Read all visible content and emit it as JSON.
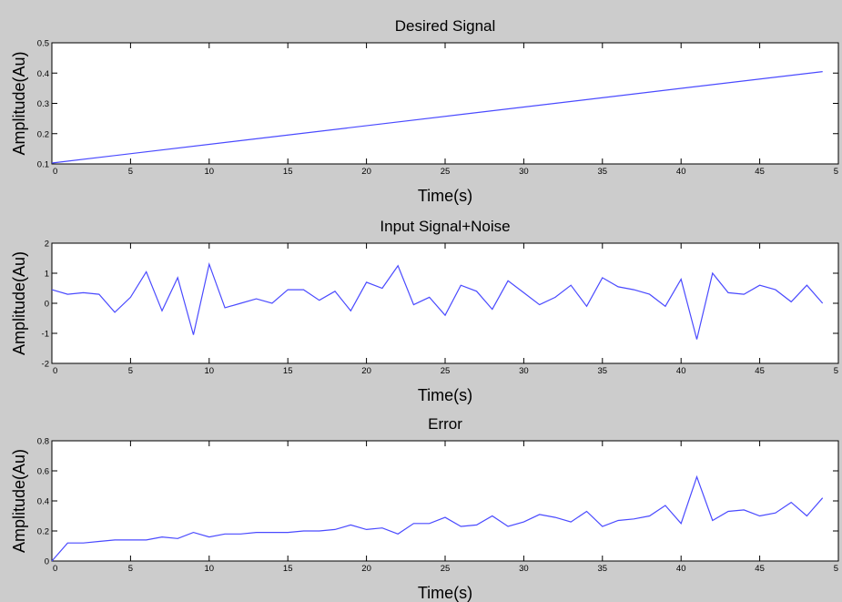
{
  "chart_data": [
    {
      "type": "line",
      "title": "Desired Signal",
      "xlabel": "Time(s)",
      "ylabel": "Amplitude(Au)",
      "xlim": [
        0,
        50
      ],
      "ylim": [
        0.1,
        0.5
      ],
      "xticks": [
        "0",
        "5",
        "10",
        "15",
        "20",
        "25",
        "30",
        "35",
        "40",
        "45",
        "5"
      ],
      "yticks": [
        "0.1",
        "0.2",
        "0.3",
        "0.4",
        "0.5"
      ],
      "grid": false,
      "line_color": "#4a4aff",
      "series": [
        {
          "x": [
            0,
            49
          ],
          "y": [
            0.103,
            0.405
          ]
        }
      ]
    },
    {
      "type": "line",
      "title": "Input Signal+Noise",
      "xlabel": "Time(s)",
      "ylabel": "Amplitude(Au)",
      "xlim": [
        0,
        50
      ],
      "ylim": [
        -2,
        2
      ],
      "xticks": [
        "0",
        "5",
        "10",
        "15",
        "20",
        "25",
        "30",
        "35",
        "40",
        "45",
        "5"
      ],
      "yticks": [
        "-2",
        "-1",
        "0",
        "1",
        "2"
      ],
      "grid": false,
      "line_color": "#4a4aff",
      "series": [
        {
          "x": [
            0,
            1,
            2,
            3,
            4,
            5,
            6,
            7,
            8,
            9,
            10,
            11,
            12,
            13,
            14,
            15,
            16,
            17,
            18,
            19,
            20,
            21,
            22,
            23,
            24,
            25,
            26,
            27,
            28,
            29,
            30,
            31,
            32,
            33,
            34,
            35,
            36,
            37,
            38,
            39,
            40,
            41,
            42,
            43,
            44,
            45,
            46,
            47,
            48,
            49
          ],
          "y": [
            0.45,
            0.3,
            0.35,
            0.3,
            -0.3,
            0.2,
            1.05,
            -0.25,
            0.85,
            -1.05,
            1.3,
            -0.15,
            0.0,
            0.15,
            0.0,
            0.45,
            0.45,
            0.1,
            0.4,
            -0.25,
            0.7,
            0.5,
            1.25,
            -0.05,
            0.2,
            -0.4,
            0.6,
            0.4,
            -0.2,
            0.75,
            0.35,
            -0.05,
            0.2,
            0.6,
            -0.1,
            0.85,
            0.55,
            0.45,
            0.3,
            -0.1,
            0.8,
            -1.2,
            1.0,
            0.35,
            0.3,
            0.6,
            0.45,
            0.05,
            0.6,
            0.0
          ]
        }
      ]
    },
    {
      "type": "line",
      "title": "Error",
      "xlabel": "Time(s)",
      "ylabel": "Amplitude(Au)",
      "xlim": [
        0,
        50
      ],
      "ylim": [
        0,
        0.8
      ],
      "xticks": [
        "0",
        "5",
        "10",
        "15",
        "20",
        "25",
        "30",
        "35",
        "40",
        "45",
        "5"
      ],
      "yticks": [
        "0",
        "0.2",
        "0.4",
        "0.6",
        "0.8"
      ],
      "grid": false,
      "line_color": "#4a4aff",
      "series": [
        {
          "x": [
            0,
            1,
            2,
            3,
            4,
            5,
            6,
            7,
            8,
            9,
            10,
            11,
            12,
            13,
            14,
            15,
            16,
            17,
            18,
            19,
            20,
            21,
            22,
            23,
            24,
            25,
            26,
            27,
            28,
            29,
            30,
            31,
            32,
            33,
            34,
            35,
            36,
            37,
            38,
            39,
            40,
            41,
            42,
            43,
            44,
            45,
            46,
            47,
            48,
            49
          ],
          "y": [
            0.0,
            0.12,
            0.12,
            0.13,
            0.14,
            0.14,
            0.14,
            0.16,
            0.15,
            0.19,
            0.16,
            0.18,
            0.18,
            0.19,
            0.19,
            0.19,
            0.2,
            0.2,
            0.21,
            0.24,
            0.21,
            0.22,
            0.18,
            0.25,
            0.25,
            0.29,
            0.23,
            0.24,
            0.3,
            0.23,
            0.26,
            0.31,
            0.29,
            0.26,
            0.33,
            0.23,
            0.27,
            0.28,
            0.3,
            0.37,
            0.25,
            0.56,
            0.27,
            0.33,
            0.34,
            0.3,
            0.32,
            0.39,
            0.3,
            0.42
          ]
        }
      ]
    }
  ]
}
